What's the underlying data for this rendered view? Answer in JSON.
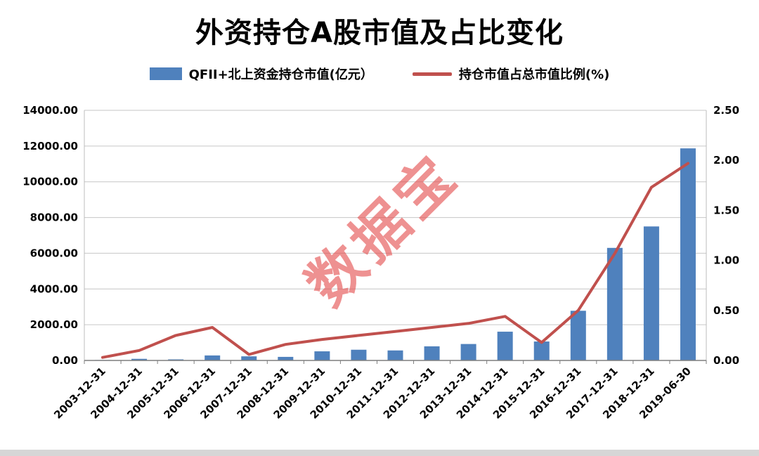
{
  "title": "外资持仓A股市值及占比变化",
  "watermark": "数据宝",
  "legend": [
    {
      "label": "QFII+北上资金持仓市值(亿元）",
      "type": "bar",
      "color": "#4f81bd"
    },
    {
      "label": "持仓市值占总市值比例(%)",
      "type": "line",
      "color": "#c0504d"
    }
  ],
  "chart_data": {
    "type": "bar",
    "subtype": "bar+line combo, dual axis",
    "title": "外资持仓A股市值及占比变化",
    "categories": [
      "2003-12-31",
      "2004-12-31",
      "2005-12-31",
      "2006-12-31",
      "2007-12-31",
      "2008-12-31",
      "2009-12-31",
      "2010-12-31",
      "2011-12-31",
      "2012-12-31",
      "2013-12-31",
      "2014-12-31",
      "2015-12-31",
      "2016-12-31",
      "2017-12-31",
      "2018-12-31",
      "2019-06-30"
    ],
    "series": [
      {
        "name": "QFII+北上资金持仓市值(亿元）",
        "type": "bar",
        "axis": "left",
        "color": "#4f81bd",
        "values": [
          25,
          90,
          60,
          280,
          230,
          200,
          510,
          600,
          560,
          790,
          920,
          1610,
          1060,
          2780,
          6300,
          7500,
          11870
        ]
      },
      {
        "name": "持仓市值占总市值比例(%)",
        "type": "line",
        "axis": "right",
        "color": "#c0504d",
        "values": [
          0.03,
          0.1,
          0.25,
          0.33,
          0.06,
          0.16,
          0.21,
          0.25,
          0.29,
          0.33,
          0.37,
          0.44,
          0.18,
          0.5,
          1.07,
          1.73,
          1.97
        ]
      }
    ],
    "left_axis": {
      "min": 0,
      "max": 14000,
      "step": 2000,
      "label_format": "0.00"
    },
    "right_axis": {
      "min": 0,
      "max": 2.5,
      "step": 0.5,
      "label_format": "0.00"
    },
    "grid": true,
    "legend_position": "top",
    "gridline_color": "#c6c6c6",
    "axis_line_color": "#7f7f7f"
  }
}
